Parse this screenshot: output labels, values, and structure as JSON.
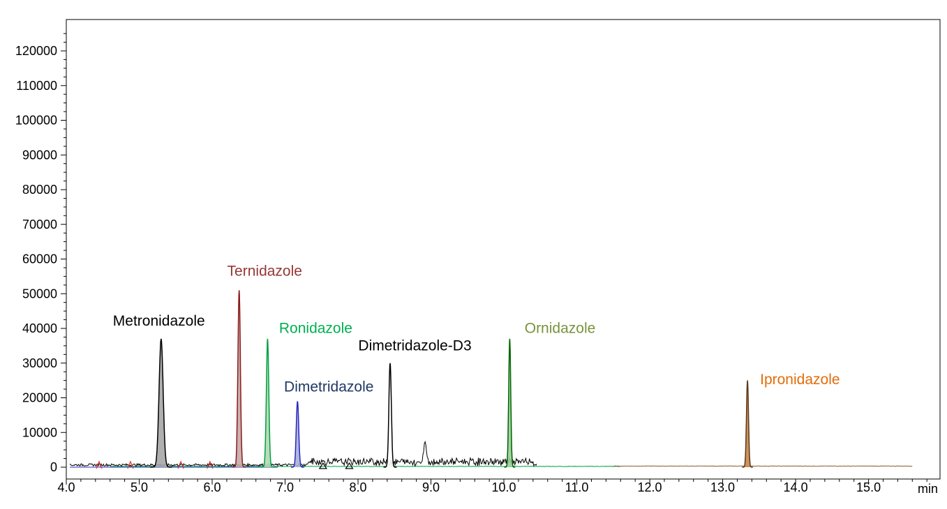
{
  "chart_data": {
    "type": "line",
    "xlabel": "min",
    "ylabel": "",
    "xlim": [
      4.0,
      15.98
    ],
    "ylim": [
      0,
      130000
    ],
    "x_ticks": [
      "4.0",
      "5.0",
      "6.0",
      "7.0",
      "8.0",
      "9.0",
      "10.0",
      "11.0",
      "12.0",
      "13.0",
      "14.0",
      "15.0"
    ],
    "y_ticks": [
      "0",
      "10000",
      "20000",
      "30000",
      "40000",
      "50000",
      "60000",
      "70000",
      "80000",
      "90000",
      "100000",
      "110000",
      "120000"
    ],
    "grid": false,
    "legend": "none",
    "series": [
      {
        "name": "Metronidazole",
        "color": "#000000",
        "fill": "#a6a6a6",
        "label_color": "#000000",
        "peak_rt": 5.3,
        "peak_height": 37000,
        "width": 0.05
      },
      {
        "name": "Ternidazole",
        "color": "#8b1a1a",
        "fill": "#c4aaaa",
        "label_color": "#953735",
        "peak_rt": 6.37,
        "peak_height": 51000,
        "width": 0.03
      },
      {
        "name": "Ronidazole",
        "color": "#00a040",
        "fill": "#b4d8b4",
        "label_color": "#00b050",
        "peak_rt": 6.76,
        "peak_height": 37000,
        "width": 0.03
      },
      {
        "name": "Dimetridazole",
        "color": "#2828c0",
        "fill": "#aab0d8",
        "label_color": "#1f3864",
        "peak_rt": 7.17,
        "peak_height": 19000,
        "width": 0.03
      },
      {
        "name": "Dimetridazole-D3",
        "color": "#000000",
        "fill": "#ffffff",
        "label_color": "#000000",
        "peak_rt": 8.44,
        "peak_height": 30000,
        "width": 0.03
      },
      {
        "name": "Ornidazole",
        "color": "#006400",
        "fill": "#9acd9a",
        "label_color": "#77933c",
        "peak_rt": 10.08,
        "peak_height": 37000,
        "width": 0.025
      },
      {
        "name": "Ipronidazole",
        "color": "#5c3a1e",
        "fill": "#c8874a",
        "label_color": "#e36c09",
        "peak_rt": 13.34,
        "peak_height": 25000,
        "width": 0.025
      }
    ],
    "annotations": [
      {
        "text": "Metronidazole",
        "x": 5.27,
        "y": 40800,
        "color": "#000000"
      },
      {
        "text": "Ternidazole",
        "x": 6.72,
        "y": 55200,
        "color": "#953735"
      },
      {
        "text": "Ronidazole",
        "x": 7.42,
        "y": 38700,
        "color": "#00b050"
      },
      {
        "text": "Dimetridazole",
        "x": 7.6,
        "y": 21800,
        "color": "#1f3864"
      },
      {
        "text": "Dimetridazole-D3",
        "x": 8.78,
        "y": 33700,
        "color": "#000000"
      },
      {
        "text": "Ornidazole",
        "x": 10.77,
        "y": 38700,
        "color": "#77933c"
      },
      {
        "text": "Ipronidazole",
        "x": 14.06,
        "y": 23900,
        "color": "#e36c09"
      }
    ]
  }
}
